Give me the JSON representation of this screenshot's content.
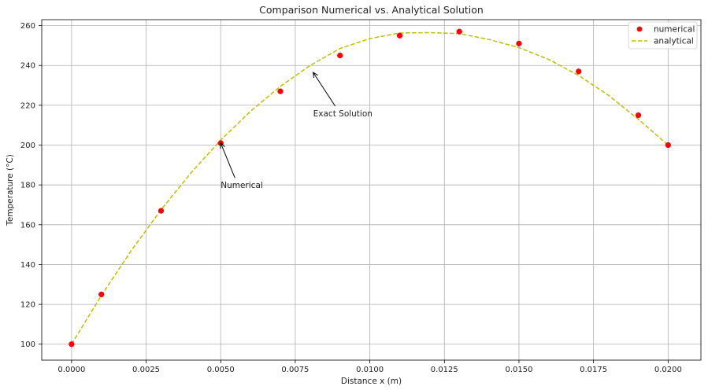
{
  "chart_data": {
    "type": "line",
    "title": "Comparison Numerical vs. Analytical Solution",
    "xlabel": "Distance x (m)",
    "ylabel": "Temperature (°C)",
    "xlim": [
      -0.001,
      0.0211
    ],
    "ylim": [
      92,
      263
    ],
    "x_ticks": [
      0.0,
      0.0025,
      0.005,
      0.0075,
      0.01,
      0.0125,
      0.015,
      0.0175,
      0.02
    ],
    "x_tick_labels": [
      "0.0000",
      "0.0025",
      "0.0050",
      "0.0075",
      "0.0100",
      "0.0125",
      "0.0150",
      "0.0175",
      "0.0200"
    ],
    "y_ticks": [
      100,
      120,
      140,
      160,
      180,
      200,
      220,
      240,
      260
    ],
    "y_tick_labels": [
      "100",
      "120",
      "140",
      "160",
      "180",
      "200",
      "220",
      "240",
      "260"
    ],
    "grid": true,
    "legend_position": "top-right",
    "series": [
      {
        "name": "numerical",
        "style": "markers",
        "color": "#ff0000",
        "x": [
          0.0,
          0.001,
          0.003,
          0.005,
          0.007,
          0.009,
          0.011,
          0.013,
          0.015,
          0.017,
          0.019,
          0.02
        ],
        "y": [
          100,
          125,
          167,
          201,
          227,
          245,
          255,
          257,
          251,
          237,
          215,
          200
        ]
      },
      {
        "name": "analytical",
        "style": "dashed",
        "color": "#bfbf00",
        "x": [
          0.0,
          0.001,
          0.002,
          0.003,
          0.004,
          0.005,
          0.006,
          0.007,
          0.008,
          0.009,
          0.01,
          0.011,
          0.012,
          0.013,
          0.014,
          0.015,
          0.016,
          0.017,
          0.018,
          0.019,
          0.02
        ],
        "y": [
          100,
          124.5,
          147,
          167.5,
          186,
          202.5,
          217,
          229.5,
          240,
          248.5,
          253.5,
          256.3,
          256.5,
          256,
          253,
          249,
          243,
          235,
          225,
          213,
          200
        ]
      }
    ],
    "annotations": [
      {
        "text": "Exact Solution",
        "point": [
          0.0081,
          236.5
        ],
        "text_at": [
          0.0081,
          216
        ]
      },
      {
        "text": "Numerical",
        "point": [
          0.005,
          201
        ],
        "text_at": [
          0.005,
          180
        ]
      }
    ]
  }
}
